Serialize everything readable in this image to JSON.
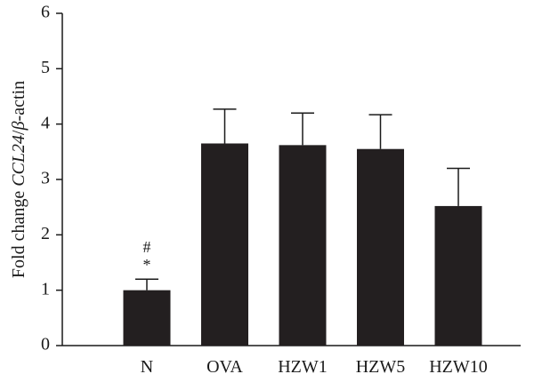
{
  "chart_data": {
    "type": "bar",
    "categories": [
      "N",
      "OVA",
      "HZW1",
      "HZW5",
      "HZW10"
    ],
    "values": [
      1.0,
      3.65,
      3.62,
      3.55,
      2.52
    ],
    "errors": [
      0.2,
      0.62,
      0.58,
      0.62,
      0.68
    ],
    "ylabel": {
      "prefix": "Fold change ",
      "gene": "CCL24",
      "slash": "/",
      "beta": "β",
      "suffix": "-actin"
    },
    "ylim": [
      0,
      6
    ],
    "yticks": [
      "0",
      "1",
      "2",
      "3",
      "4",
      "5",
      "6"
    ],
    "grid": false,
    "annotations": [
      {
        "category": "N",
        "symbols": [
          "#",
          "*"
        ]
      }
    ],
    "bar_color": "#231f20",
    "axis_color": "#1a1a1a"
  }
}
